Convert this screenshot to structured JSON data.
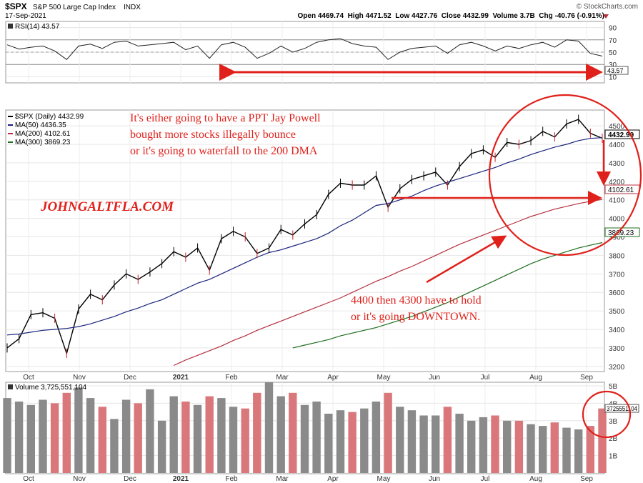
{
  "header": {
    "symbol": "$SPX",
    "name": "S&P 500 Large Cap Index",
    "exchange": "INDX",
    "date": "17-Sep-2021",
    "source": "© StockCharts.com",
    "ohlc": "Open 4469.74  High 4471.52  Low 4427.76  Close 4432.99  Volume 3.7B  Chg -40.76 (-0.91%)"
  },
  "rsi_panel": {
    "label": "RSI(14) 43.57",
    "value_tag": "43.57",
    "ticks": [
      90,
      70,
      50,
      30,
      10
    ]
  },
  "price_panel": {
    "legend": [
      {
        "text": "$SPX (Daily) 4432.99",
        "color": "#000000"
      },
      {
        "text": "MA(50) 4436.35",
        "color": "#1a237e"
      },
      {
        "text": "MA(200) 4102.61",
        "color": "#b5303f"
      },
      {
        "text": "MA(300) 3869.23",
        "color": "#1f6e1f"
      }
    ],
    "tag_price": "4432.99",
    "tag_ma200": "4102.61",
    "tag_ma300": "3869.23",
    "ticks": [
      4500,
      4400,
      4300,
      4200,
      4100,
      4000,
      3900,
      3800,
      3700,
      3600,
      3500,
      3400,
      3300,
      3200
    ]
  },
  "volume_panel": {
    "label": "Volume 3,725,551,104",
    "value_tag": "3725551104",
    "ticks": [
      "5B",
      "4B",
      "3B",
      "2B",
      "1B"
    ]
  },
  "x_axis": [
    "Oct",
    "Nov",
    "Dec",
    "2021",
    "Feb",
    "Mar",
    "Apr",
    "May",
    "Jun",
    "Jul",
    "Aug",
    "Sep"
  ],
  "annotations": {
    "brand": "JOHNGALTFLA.COM",
    "note_top": [
      "It's either going to have a PPT Jay Powell",
      "bought more stocks illegally bounce",
      "or it's going to waterfall to the 200 DMA"
    ],
    "note_bottom": [
      "4400 then 4300 have to hold",
      "or it's going DOWNTOWN."
    ],
    "color": "#e0201a"
  },
  "chart_data": {
    "type": "line",
    "title": "$SPX S&P 500 Large Cap Index",
    "x": [
      "2020-09-25",
      "2020-10-02",
      "2020-10-09",
      "2020-10-16",
      "2020-10-23",
      "2020-10-30",
      "2020-11-06",
      "2020-11-13",
      "2020-11-20",
      "2020-11-27",
      "2020-12-04",
      "2020-12-11",
      "2020-12-18",
      "2020-12-31",
      "2021-01-08",
      "2021-01-15",
      "2021-01-22",
      "2021-01-29",
      "2021-02-05",
      "2021-02-12",
      "2021-02-19",
      "2021-02-26",
      "2021-03-05",
      "2021-03-12",
      "2021-03-19",
      "2021-03-26",
      "2021-04-01",
      "2021-04-09",
      "2021-04-16",
      "2021-04-23",
      "2021-04-30",
      "2021-05-07",
      "2021-05-12",
      "2021-05-21",
      "2021-05-28",
      "2021-06-04",
      "2021-06-11",
      "2021-06-18",
      "2021-06-25",
      "2021-07-02",
      "2021-07-09",
      "2021-07-16",
      "2021-07-23",
      "2021-07-30",
      "2021-08-06",
      "2021-08-13",
      "2021-08-20",
      "2021-08-27",
      "2021-09-03",
      "2021-09-10",
      "2021-09-17"
    ],
    "series": [
      {
        "name": "$SPX (Daily)",
        "values": [
          3300,
          3350,
          3480,
          3490,
          3460,
          3270,
          3510,
          3590,
          3560,
          3640,
          3700,
          3670,
          3710,
          3756,
          3820,
          3790,
          3840,
          3720,
          3890,
          3930,
          3900,
          3810,
          3840,
          3940,
          3910,
          3970,
          4020,
          4130,
          4190,
          4180,
          4180,
          4230,
          4060,
          4160,
          4210,
          4230,
          4250,
          4180,
          4280,
          4350,
          4370,
          4330,
          4410,
          4400,
          4420,
          4470,
          4440,
          4510,
          4535,
          4460,
          4433
        ]
      },
      {
        "name": "MA(50)",
        "values": [
          3370,
          3375,
          3385,
          3395,
          3400,
          3405,
          3415,
          3430,
          3450,
          3470,
          3495,
          3515,
          3540,
          3560,
          3590,
          3620,
          3650,
          3670,
          3700,
          3730,
          3760,
          3790,
          3815,
          3830,
          3850,
          3870,
          3890,
          3920,
          3960,
          3990,
          4030,
          4070,
          4080,
          4100,
          4120,
          4150,
          4175,
          4195,
          4215,
          4235,
          4255,
          4275,
          4300,
          4320,
          4345,
          4365,
          4385,
          4400,
          4420,
          4432,
          4436
        ]
      },
      {
        "name": "MA(200)",
        "values": [
          null,
          null,
          null,
          null,
          null,
          null,
          null,
          null,
          null,
          null,
          null,
          null,
          null,
          null,
          3205,
          3235,
          3260,
          3285,
          3310,
          3340,
          3365,
          3395,
          3420,
          3445,
          3470,
          3495,
          3520,
          3545,
          3570,
          3600,
          3630,
          3660,
          3685,
          3715,
          3740,
          3770,
          3800,
          3830,
          3860,
          3885,
          3910,
          3935,
          3960,
          3985,
          4010,
          4030,
          4050,
          4065,
          4080,
          4092,
          4102.61
        ]
      },
      {
        "name": "MA(300)",
        "values": [
          null,
          null,
          null,
          null,
          null,
          null,
          null,
          null,
          null,
          null,
          null,
          null,
          null,
          null,
          null,
          null,
          null,
          null,
          null,
          null,
          null,
          null,
          null,
          null,
          3300,
          3315,
          3330,
          3345,
          3365,
          3380,
          3395,
          3410,
          3430,
          3450,
          3470,
          3495,
          3520,
          3545,
          3575,
          3605,
          3635,
          3665,
          3695,
          3725,
          3755,
          3780,
          3800,
          3820,
          3840,
          3855,
          3869.23
        ]
      }
    ],
    "volume": [
      4.3,
      4.1,
      3.9,
      4.2,
      4.0,
      4.6,
      4.9,
      4.3,
      3.8,
      3.1,
      4.2,
      4.0,
      4.8,
      3.0,
      4.4,
      4.1,
      3.9,
      4.4,
      4.3,
      3.8,
      3.7,
      4.6,
      5.2,
      4.4,
      4.6,
      3.9,
      4.1,
      3.4,
      3.6,
      3.5,
      3.7,
      4.1,
      4.6,
      3.8,
      3.6,
      3.3,
      3.3,
      3.8,
      3.4,
      3.0,
      3.2,
      3.3,
      3.0,
      3.0,
      2.8,
      2.7,
      2.9,
      2.6,
      2.5,
      2.7,
      3.7
    ],
    "ylim_price": [
      3180,
      4570
    ],
    "ylim_rsi": [
      0,
      100
    ],
    "ylim_volume": [
      0,
      5
    ],
    "rsi": [
      62,
      55,
      58,
      60,
      52,
      38,
      60,
      63,
      56,
      66,
      68,
      60,
      62,
      64,
      66,
      54,
      60,
      40,
      62,
      66,
      58,
      40,
      48,
      60,
      50,
      56,
      66,
      70,
      72,
      64,
      60,
      58,
      38,
      50,
      56,
      58,
      60,
      48,
      62,
      66,
      60,
      52,
      60,
      56,
      62,
      66,
      58,
      70,
      68,
      48,
      43.57
    ],
    "grid": true,
    "legend_position": "top-left"
  }
}
